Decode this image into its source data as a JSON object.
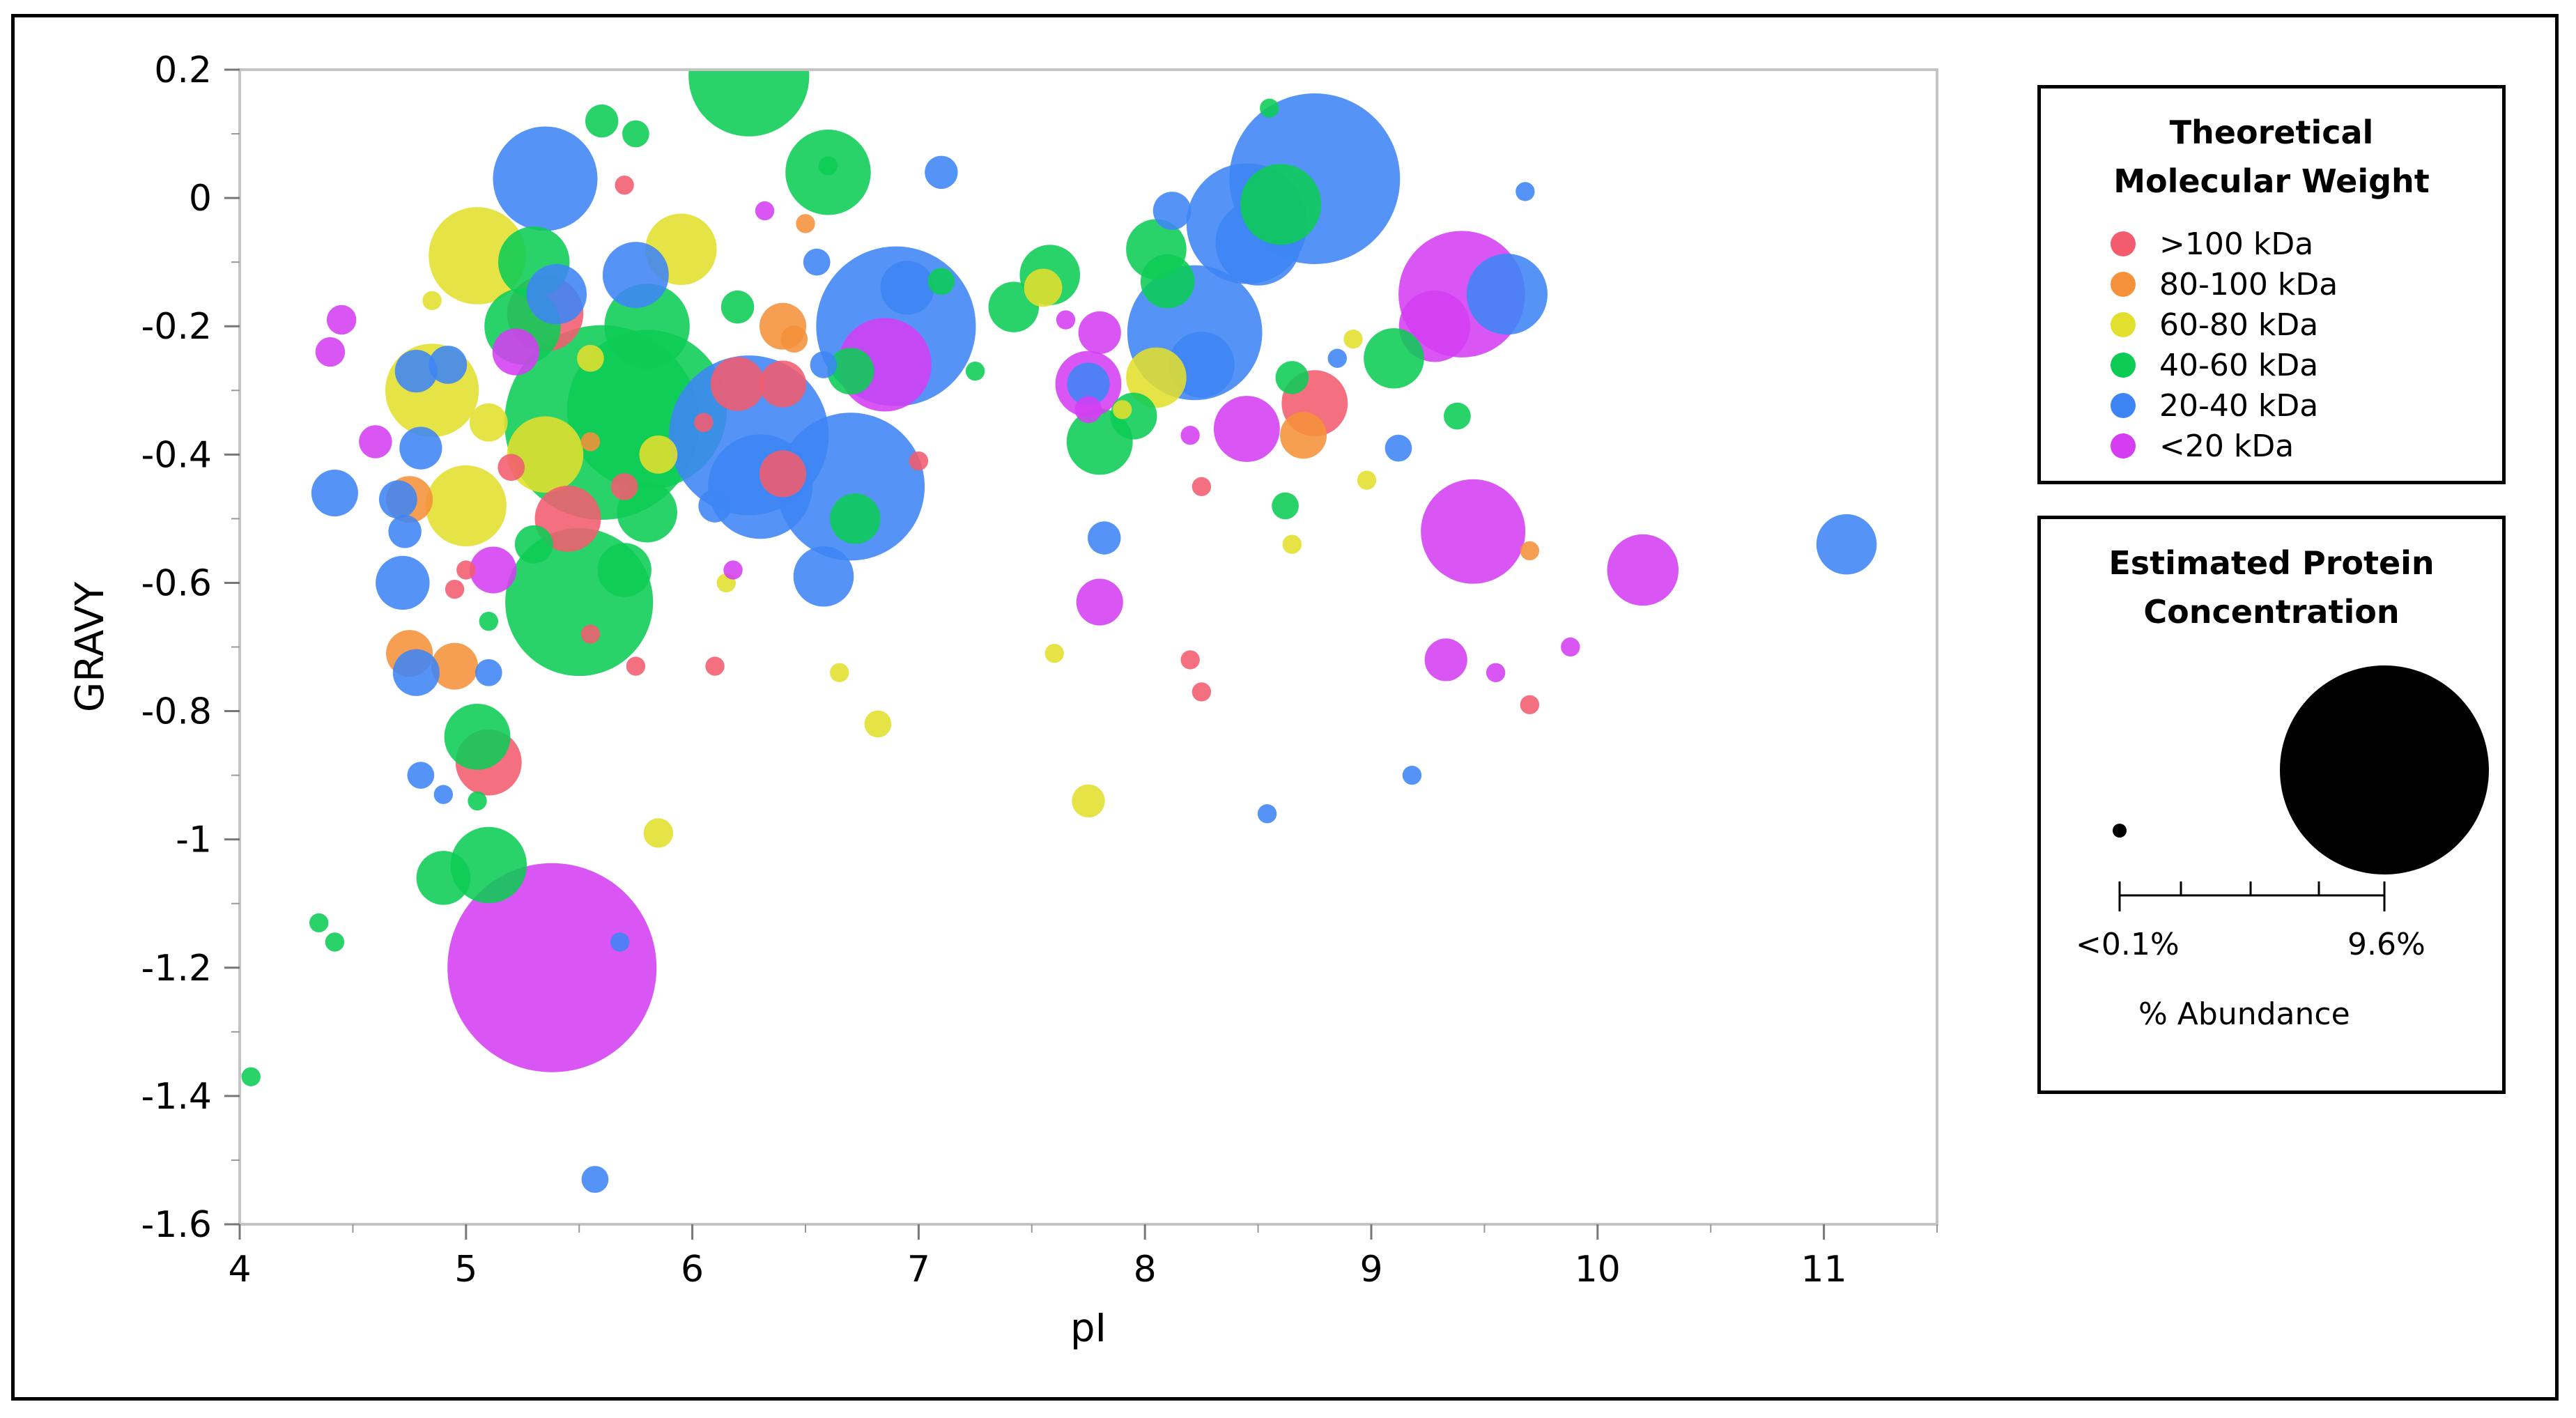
{
  "chart_data": {
    "type": "scatter",
    "subtype": "bubble",
    "xlabel": "pI",
    "ylabel": "GRAVY",
    "xlim": [
      4,
      11.5
    ],
    "ylim": [
      -1.6,
      0.2
    ],
    "x_ticks": [
      "4",
      "5",
      "6",
      "7",
      "8",
      "9",
      "10",
      "11"
    ],
    "y_ticks": [
      "0.2",
      "0",
      "-0.2",
      "-0.4",
      "-0.6",
      "-0.8",
      "-1",
      "-1.2",
      "-1.4",
      "-1.6"
    ],
    "grid": false,
    "legend_placement": "right",
    "series": [
      {
        "name": ">100 kDa",
        "color": "#f25c6e",
        "points": [
          {
            "x": 5.35,
            "y": -0.18,
            "size": 0.8
          },
          {
            "x": 5.45,
            "y": -0.5,
            "size": 0.6
          },
          {
            "x": 5.1,
            "y": -0.88,
            "size": 0.6
          },
          {
            "x": 6.2,
            "y": -0.29,
            "size": 0.4
          },
          {
            "x": 6.4,
            "y": -0.43,
            "size": 0.3
          },
          {
            "x": 8.75,
            "y": -0.32,
            "size": 0.6
          },
          {
            "x": 6.4,
            "y": -0.29,
            "size": 0.3
          },
          {
            "x": 5.2,
            "y": -0.42,
            "size": 0.1
          },
          {
            "x": 5.7,
            "y": -0.45,
            "size": 0.1
          },
          {
            "x": 6.1,
            "y": -0.73,
            "size": 0.05
          },
          {
            "x": 5.55,
            "y": -0.68,
            "size": 0.05
          },
          {
            "x": 5.75,
            "y": -0.73,
            "size": 0.05
          },
          {
            "x": 8.2,
            "y": -0.72,
            "size": 0.05
          },
          {
            "x": 8.25,
            "y": -0.77,
            "size": 0.05
          },
          {
            "x": 9.7,
            "y": -0.79,
            "size": 0.05
          },
          {
            "x": 5.7,
            "y": 0.02,
            "size": 0.05
          },
          {
            "x": 6.05,
            "y": -0.35,
            "size": 0.05
          },
          {
            "x": 7.0,
            "y": -0.41,
            "size": 0.05
          },
          {
            "x": 4.95,
            "y": -0.61,
            "size": 0.05
          },
          {
            "x": 8.25,
            "y": -0.45,
            "size": 0.05
          },
          {
            "x": 5.0,
            "y": -0.58,
            "size": 0.05
          }
        ]
      },
      {
        "name": "80-100 kDa",
        "color": "#f5913a",
        "points": [
          {
            "x": 4.75,
            "y": -0.47,
            "size": 0.3
          },
          {
            "x": 4.75,
            "y": -0.71,
            "size": 0.3
          },
          {
            "x": 4.95,
            "y": -0.73,
            "size": 0.3
          },
          {
            "x": 6.4,
            "y": -0.2,
            "size": 0.3
          },
          {
            "x": 8.7,
            "y": -0.37,
            "size": 0.3
          },
          {
            "x": 6.45,
            "y": -0.22,
            "size": 0.1
          },
          {
            "x": 6.5,
            "y": -0.04,
            "size": 0.05
          },
          {
            "x": 9.7,
            "y": -0.55,
            "size": 0.05
          },
          {
            "x": 5.55,
            "y": -0.38,
            "size": 0.05
          }
        ]
      },
      {
        "name": "60-80 kDa",
        "color": "#e3df2e",
        "points": [
          {
            "x": 5.05,
            "y": -0.09,
            "size": 1.3
          },
          {
            "x": 4.85,
            "y": -0.3,
            "size": 1.2
          },
          {
            "x": 5.0,
            "y": -0.48,
            "size": 0.9
          },
          {
            "x": 5.35,
            "y": -0.4,
            "size": 0.8
          },
          {
            "x": 5.95,
            "y": -0.08,
            "size": 0.7
          },
          {
            "x": 8.05,
            "y": -0.28,
            "size": 0.5
          },
          {
            "x": 5.1,
            "y": -0.35,
            "size": 0.2
          },
          {
            "x": 7.75,
            "y": -0.94,
            "size": 0.15
          },
          {
            "x": 5.85,
            "y": -0.99,
            "size": 0.12
          },
          {
            "x": 6.82,
            "y": -0.82,
            "size": 0.1
          },
          {
            "x": 7.55,
            "y": -0.14,
            "size": 0.2
          },
          {
            "x": 5.85,
            "y": -0.4,
            "size": 0.2
          },
          {
            "x": 7.6,
            "y": -0.71,
            "size": 0.05
          },
          {
            "x": 6.65,
            "y": -0.74,
            "size": 0.05
          },
          {
            "x": 8.98,
            "y": -0.44,
            "size": 0.05
          },
          {
            "x": 8.65,
            "y": -0.54,
            "size": 0.05
          },
          {
            "x": 6.15,
            "y": -0.6,
            "size": 0.05
          },
          {
            "x": 4.85,
            "y": -0.16,
            "size": 0.05
          },
          {
            "x": 5.55,
            "y": -0.25,
            "size": 0.1
          },
          {
            "x": 7.9,
            "y": -0.33,
            "size": 0.05
          },
          {
            "x": 8.92,
            "y": -0.22,
            "size": 0.05
          }
        ]
      },
      {
        "name": "40-60 kDa",
        "color": "#0ccc55",
        "points": [
          {
            "x": 5.6,
            "y": -0.35,
            "size": 5.2
          },
          {
            "x": 5.8,
            "y": -0.33,
            "size": 3.5
          },
          {
            "x": 5.5,
            "y": -0.63,
            "size": 3.0
          },
          {
            "x": 6.25,
            "y": 0.19,
            "size": 2.0
          },
          {
            "x": 5.8,
            "y": -0.2,
            "size": 1.0
          },
          {
            "x": 6.6,
            "y": 0.04,
            "size": 1.0
          },
          {
            "x": 8.6,
            "y": -0.01,
            "size": 0.9
          },
          {
            "x": 7.8,
            "y": -0.38,
            "size": 0.6
          },
          {
            "x": 5.1,
            "y": -1.04,
            "size": 0.8
          },
          {
            "x": 5.25,
            "y": -0.2,
            "size": 0.8
          },
          {
            "x": 5.3,
            "y": -0.1,
            "size": 0.7
          },
          {
            "x": 5.05,
            "y": -0.84,
            "size": 0.6
          },
          {
            "x": 5.8,
            "y": -0.49,
            "size": 0.5
          },
          {
            "x": 7.58,
            "y": -0.12,
            "size": 0.5
          },
          {
            "x": 8.05,
            "y": -0.08,
            "size": 0.5
          },
          {
            "x": 9.1,
            "y": -0.25,
            "size": 0.5
          },
          {
            "x": 4.9,
            "y": -1.06,
            "size": 0.4
          },
          {
            "x": 8.1,
            "y": -0.13,
            "size": 0.4
          },
          {
            "x": 7.42,
            "y": -0.17,
            "size": 0.35
          },
          {
            "x": 6.72,
            "y": -0.5,
            "size": 0.35
          },
          {
            "x": 5.7,
            "y": -0.58,
            "size": 0.4
          },
          {
            "x": 7.95,
            "y": -0.34,
            "size": 0.3
          },
          {
            "x": 5.6,
            "y": 0.12,
            "size": 0.15
          },
          {
            "x": 5.75,
            "y": 0.1,
            "size": 0.1
          },
          {
            "x": 6.2,
            "y": -0.17,
            "size": 0.15
          },
          {
            "x": 4.35,
            "y": -1.13,
            "size": 0.05
          },
          {
            "x": 4.42,
            "y": -1.16,
            "size": 0.05
          },
          {
            "x": 4.05,
            "y": -1.37,
            "size": 0.05
          },
          {
            "x": 9.38,
            "y": -0.34,
            "size": 0.1
          },
          {
            "x": 8.55,
            "y": 0.14,
            "size": 0.05
          },
          {
            "x": 8.62,
            "y": -0.48,
            "size": 0.1
          },
          {
            "x": 8.65,
            "y": -0.28,
            "size": 0.15
          },
          {
            "x": 6.6,
            "y": 0.05,
            "size": 0.05
          },
          {
            "x": 5.1,
            "y": -0.66,
            "size": 0.05
          },
          {
            "x": 5.05,
            "y": -0.94,
            "size": 0.05
          },
          {
            "x": 7.25,
            "y": -0.27,
            "size": 0.05
          },
          {
            "x": 7.1,
            "y": -0.13,
            "size": 0.1
          },
          {
            "x": 5.3,
            "y": -0.54,
            "size": 0.2
          },
          {
            "x": 6.7,
            "y": -0.27,
            "size": 0.3
          }
        ]
      },
      {
        "name": "20-40 kDa",
        "color": "#3d85f5",
        "points": [
          {
            "x": 8.75,
            "y": 0.03,
            "size": 4.0
          },
          {
            "x": 6.9,
            "y": -0.2,
            "size": 3.5
          },
          {
            "x": 6.25,
            "y": -0.37,
            "size": 3.5
          },
          {
            "x": 6.7,
            "y": -0.45,
            "size": 3.0
          },
          {
            "x": 8.22,
            "y": -0.21,
            "size": 2.5
          },
          {
            "x": 8.45,
            "y": -0.04,
            "size": 2.0
          },
          {
            "x": 5.35,
            "y": 0.03,
            "size": 1.5
          },
          {
            "x": 8.5,
            "y": -0.07,
            "size": 1.0
          },
          {
            "x": 9.6,
            "y": -0.15,
            "size": 0.9
          },
          {
            "x": 6.3,
            "y": -0.45,
            "size": 1.5
          },
          {
            "x": 5.75,
            "y": -0.12,
            "size": 0.6
          },
          {
            "x": 5.4,
            "y": -0.15,
            "size": 0.5
          },
          {
            "x": 6.58,
            "y": -0.59,
            "size": 0.5
          },
          {
            "x": 4.72,
            "y": -0.6,
            "size": 0.4
          },
          {
            "x": 4.78,
            "y": -0.74,
            "size": 0.3
          },
          {
            "x": 11.1,
            "y": -0.54,
            "size": 0.5
          },
          {
            "x": 6.95,
            "y": -0.14,
            "size": 0.4
          },
          {
            "x": 8.25,
            "y": -0.26,
            "size": 0.6
          },
          {
            "x": 4.42,
            "y": -0.46,
            "size": 0.3
          },
          {
            "x": 4.8,
            "y": -0.39,
            "size": 0.25
          },
          {
            "x": 4.92,
            "y": -0.26,
            "size": 0.2
          },
          {
            "x": 4.78,
            "y": -0.27,
            "size": 0.25
          },
          {
            "x": 4.73,
            "y": -0.52,
            "size": 0.15
          },
          {
            "x": 4.7,
            "y": -0.47,
            "size": 0.2
          },
          {
            "x": 7.1,
            "y": 0.04,
            "size": 0.15
          },
          {
            "x": 7.75,
            "y": -0.29,
            "size": 0.25
          },
          {
            "x": 7.82,
            "y": -0.53,
            "size": 0.15
          },
          {
            "x": 9.12,
            "y": -0.39,
            "size": 0.1
          },
          {
            "x": 9.68,
            "y": 0.01,
            "size": 0.05
          },
          {
            "x": 5.1,
            "y": -0.74,
            "size": 0.1
          },
          {
            "x": 4.8,
            "y": -0.9,
            "size": 0.1
          },
          {
            "x": 5.57,
            "y": -1.53,
            "size": 0.1
          },
          {
            "x": 5.68,
            "y": -1.16,
            "size": 0.05
          },
          {
            "x": 6.55,
            "y": -0.1,
            "size": 0.1
          },
          {
            "x": 6.58,
            "y": -0.26,
            "size": 0.1
          },
          {
            "x": 8.54,
            "y": -0.96,
            "size": 0.05
          },
          {
            "x": 9.18,
            "y": -0.9,
            "size": 0.05
          },
          {
            "x": 6.1,
            "y": -0.48,
            "size": 0.15
          },
          {
            "x": 8.12,
            "y": -0.02,
            "size": 0.2
          },
          {
            "x": 8.85,
            "y": -0.25,
            "size": 0.05
          },
          {
            "x": 4.9,
            "y": -0.93,
            "size": 0.05
          }
        ]
      },
      {
        "name": "<20 kDa",
        "color": "#d43df2",
        "points": [
          {
            "x": 5.38,
            "y": -1.2,
            "size": 6.0
          },
          {
            "x": 9.4,
            "y": -0.15,
            "size": 2.2
          },
          {
            "x": 9.45,
            "y": -0.52,
            "size": 1.5
          },
          {
            "x": 6.85,
            "y": -0.26,
            "size": 1.2
          },
          {
            "x": 10.2,
            "y": -0.58,
            "size": 0.7
          },
          {
            "x": 8.45,
            "y": -0.36,
            "size": 0.6
          },
          {
            "x": 9.28,
            "y": -0.2,
            "size": 0.7
          },
          {
            "x": 7.75,
            "y": -0.29,
            "size": 0.6
          },
          {
            "x": 7.8,
            "y": -0.63,
            "size": 0.3
          },
          {
            "x": 9.33,
            "y": -0.72,
            "size": 0.25
          },
          {
            "x": 5.12,
            "y": -0.58,
            "size": 0.3
          },
          {
            "x": 7.8,
            "y": -0.21,
            "size": 0.25
          },
          {
            "x": 5.22,
            "y": -0.24,
            "size": 0.3
          },
          {
            "x": 4.6,
            "y": -0.38,
            "size": 0.15
          },
          {
            "x": 4.4,
            "y": -0.24,
            "size": 0.12
          },
          {
            "x": 4.45,
            "y": -0.19,
            "size": 0.12
          },
          {
            "x": 9.55,
            "y": -0.74,
            "size": 0.05
          },
          {
            "x": 9.88,
            "y": -0.7,
            "size": 0.05
          },
          {
            "x": 7.65,
            "y": -0.19,
            "size": 0.05
          },
          {
            "x": 7.75,
            "y": -0.33,
            "size": 0.1
          },
          {
            "x": 8.2,
            "y": -0.37,
            "size": 0.05
          },
          {
            "x": 6.32,
            "y": -0.02,
            "size": 0.05
          },
          {
            "x": 6.18,
            "y": -0.58,
            "size": 0.05
          }
        ]
      }
    ]
  },
  "legend_mw": {
    "title_line1": "Theoretical",
    "title_line2": "Molecular Weight",
    "items": [
      {
        "label": ">100 kDa",
        "color": "#f25c6e"
      },
      {
        "label": "80-100 kDa",
        "color": "#f5913a"
      },
      {
        "label": "60-80 kDa",
        "color": "#e3df2e"
      },
      {
        "label": "40-60 kDa",
        "color": "#0ccc55"
      },
      {
        "label": "20-40 kDa",
        "color": "#3d85f5"
      },
      {
        "label": "<20 kDa",
        "color": "#d43df2"
      }
    ]
  },
  "legend_size": {
    "title_line1": "Estimated Protein",
    "title_line2": "Concentration",
    "min_label": "<0.1%",
    "max_label": "9.6%",
    "axis_label": "% Abundance"
  }
}
